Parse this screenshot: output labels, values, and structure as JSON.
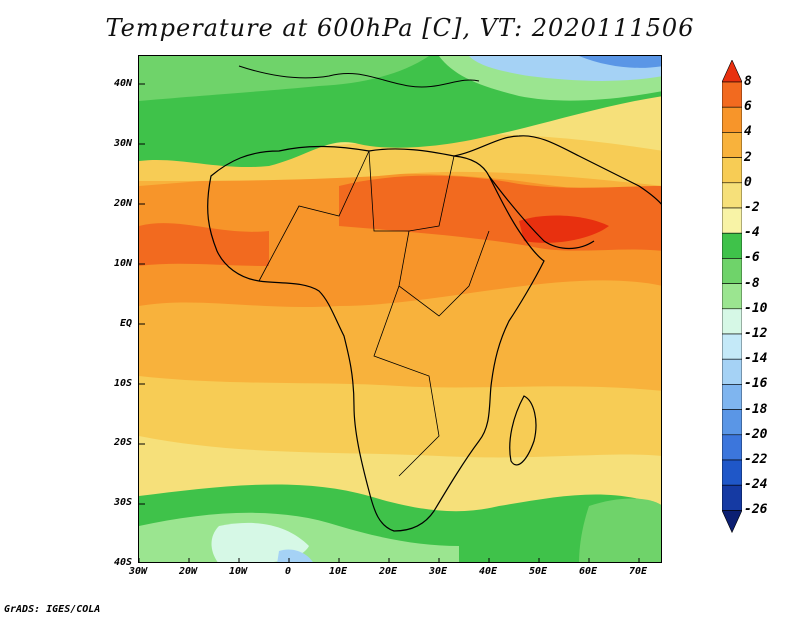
{
  "title": "Temperature at 600hPa [C], VT: 2020111506",
  "credit": "GrADS: IGES/COLA",
  "map": {
    "region": "Africa",
    "variable": "Temperature at 600hPa",
    "unit": "C",
    "valid_time": "2020111506"
  },
  "axes": {
    "y_labels": [
      "40N",
      "30N",
      "20N",
      "10N",
      "EQ",
      "10S",
      "20S",
      "30S",
      "40S"
    ],
    "x_labels": [
      "30W",
      "20W",
      "10W",
      "0",
      "10E",
      "20E",
      "30E",
      "40E",
      "50E",
      "60E",
      "70E"
    ]
  },
  "colorbar": {
    "labels": [
      "8",
      "6",
      "4",
      "2",
      "0",
      "-2",
      "-4",
      "-6",
      "-8",
      "-10",
      "-12",
      "-14",
      "-16",
      "-18",
      "-20",
      "-22",
      "-24",
      "-26"
    ],
    "colors": [
      "#e8300f",
      "#f26a1f",
      "#f7952a",
      "#f8b23c",
      "#f7cc55",
      "#f6e07a",
      "#f8f3a6",
      "#3fc24a",
      "#6fd36a",
      "#9be590",
      "#d6f8e6",
      "#c4e9f8",
      "#a5d2f5",
      "#7fb5ef",
      "#5a96e6",
      "#3c76dc",
      "#1f57c8",
      "#153aa3",
      "#0c1f72"
    ]
  }
}
